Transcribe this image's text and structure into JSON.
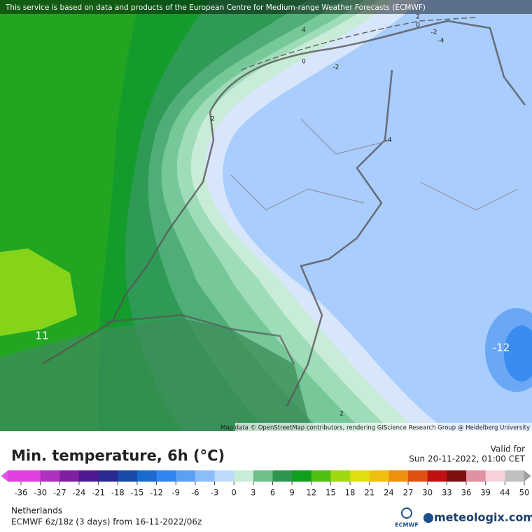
{
  "header": {
    "attribution": "This service is based on data and products of the European Centre for Medium-range Weather Forecasts (ECMWF)"
  },
  "map": {
    "contour_labels": [
      "2",
      "0",
      "4",
      "-2",
      "-4",
      "0",
      "-2",
      "2",
      "-4",
      "11",
      "-12",
      "2"
    ],
    "credit": "Map data © OpenStreetMap contributors, rendering GIScience Research Group @ Heidelberg University"
  },
  "legend": {
    "title": "Min. temperature, 6h (°C)",
    "ticks": [
      -36,
      -30,
      -27,
      -24,
      -21,
      -18,
      -15,
      -12,
      -9,
      -6,
      -3,
      0,
      3,
      6,
      9,
      12,
      15,
      18,
      21,
      24,
      27,
      30,
      33,
      36,
      39,
      44,
      50
    ],
    "colors": [
      "#e040e0",
      "#b030c0",
      "#8020a0",
      "#501890",
      "#2a2a90",
      "#1a4aa8",
      "#1a6ad0",
      "#2f86f0",
      "#5aa0f5",
      "#8cbcfa",
      "#c0dafc",
      "#c8ecd8",
      "#6fbf8a",
      "#2e9650",
      "#10a020",
      "#50c010",
      "#a0d810",
      "#e0e010",
      "#f0c010",
      "#f09010",
      "#e05010",
      "#c01010",
      "#801010",
      "#e090a0",
      "#f8d0d8",
      "#c0c0c0"
    ]
  },
  "valid": {
    "label": "Valid for",
    "time": "Sun 20-11-2022, 01:00 CET"
  },
  "footer": {
    "region": "Netherlands",
    "run": "ECMWF 6z/18z (3 days) from 16-11-2022/06z",
    "ecmwf_logo": "ECMWF",
    "brand": "meteologix.com"
  }
}
